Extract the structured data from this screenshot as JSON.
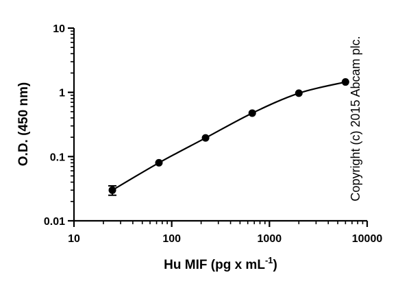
{
  "chart_data": {
    "type": "scatter",
    "title": "",
    "xlabel": "Hu MIF (pg x mL",
    "xlabel_sup": "-1",
    "xlabel_suffix": ")",
    "ylabel": "O.D. (450 nm)",
    "x_scale": "log",
    "y_scale": "log",
    "xlim": [
      10,
      10000
    ],
    "ylim": [
      0.01,
      10
    ],
    "x_ticks": [
      {
        "value": 10,
        "label": "10"
      },
      {
        "value": 100,
        "label": "100"
      },
      {
        "value": 1000,
        "label": "1000"
      },
      {
        "value": 10000,
        "label": "10000"
      }
    ],
    "y_ticks": [
      {
        "value": 0.01,
        "label": "0.01"
      },
      {
        "value": 0.1,
        "label": "0.1"
      },
      {
        "value": 1,
        "label": "1"
      },
      {
        "value": 10,
        "label": "10"
      }
    ],
    "grid": false,
    "legend": "none",
    "series": [
      {
        "x": [
          24.7,
          74,
          222,
          667,
          2000,
          6000
        ],
        "y": [
          0.03,
          0.08,
          0.195,
          0.475,
          0.97,
          1.45
        ],
        "y_err_low": [
          0.025,
          0.08,
          0.195,
          0.475,
          0.97,
          1.45
        ],
        "y_err_high": [
          0.035,
          0.08,
          0.195,
          0.475,
          0.97,
          1.45
        ],
        "marker": "filled-circle",
        "line": "fitted-curve",
        "color": "#000000"
      }
    ],
    "annotation": "Copyright (c) 2015 Abcam plc."
  }
}
